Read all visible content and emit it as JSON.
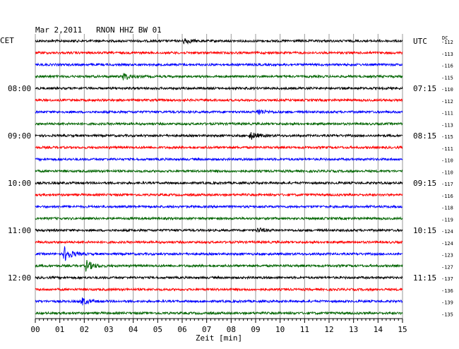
{
  "chart_data": {
    "type": "line",
    "title": "Mar 2,2011   RNON HHZ BW 01",
    "left_label": "CET",
    "right_label": "UTC",
    "dc_label": "DC",
    "xlabel": "Zeit [min]",
    "xlim": [
      0,
      15
    ],
    "x_ticks": [
      "00",
      "01",
      "02",
      "03",
      "04",
      "05",
      "06",
      "07",
      "08",
      "09",
      "10",
      "11",
      "12",
      "13",
      "14",
      "15"
    ],
    "left_time_labels": [
      {
        "trace": 4,
        "text": "08:00"
      },
      {
        "trace": 8,
        "text": "09:00"
      },
      {
        "trace": 12,
        "text": "10:00"
      },
      {
        "trace": 16,
        "text": "11:00"
      },
      {
        "trace": 20,
        "text": "12:00"
      }
    ],
    "right_time_labels": [
      {
        "trace": 0,
        "text": "UTC"
      },
      {
        "trace": 4,
        "text": "07:15"
      },
      {
        "trace": 8,
        "text": "08:15"
      },
      {
        "trace": 12,
        "text": "09:15"
      },
      {
        "trace": 16,
        "text": "10:15"
      },
      {
        "trace": 20,
        "text": "11:15"
      }
    ],
    "dc_offsets": [
      "-112",
      "-113",
      "-116",
      "-115",
      "-110",
      "-112",
      "-111",
      "-113",
      "-115",
      "-111",
      "-110",
      "-110",
      "-117",
      "-116",
      "-118",
      "-119",
      "-124",
      "-124",
      "-123",
      "-127",
      "-137",
      "-136",
      "-139",
      "-135"
    ],
    "trace_colors": [
      "#000000",
      "#ff0000",
      "#0000ff",
      "#006400"
    ],
    "events": [
      {
        "trace": 18,
        "minute": 1.2,
        "amplitude": 10
      },
      {
        "trace": 19,
        "minute": 2.1,
        "amplitude": 7
      },
      {
        "trace": 22,
        "minute": 1.9,
        "amplitude": 5
      },
      {
        "trace": 8,
        "minute": 8.8,
        "amplitude": 5
      },
      {
        "trace": 3,
        "minute": 3.6,
        "amplitude": 5
      },
      {
        "trace": 6,
        "minute": 9.1,
        "amplitude": 4
      },
      {
        "trace": 0,
        "minute": 6.1,
        "amplitude": 4
      },
      {
        "trace": 16,
        "minute": 9.1,
        "amplitude": 3
      }
    ],
    "grid": true
  }
}
